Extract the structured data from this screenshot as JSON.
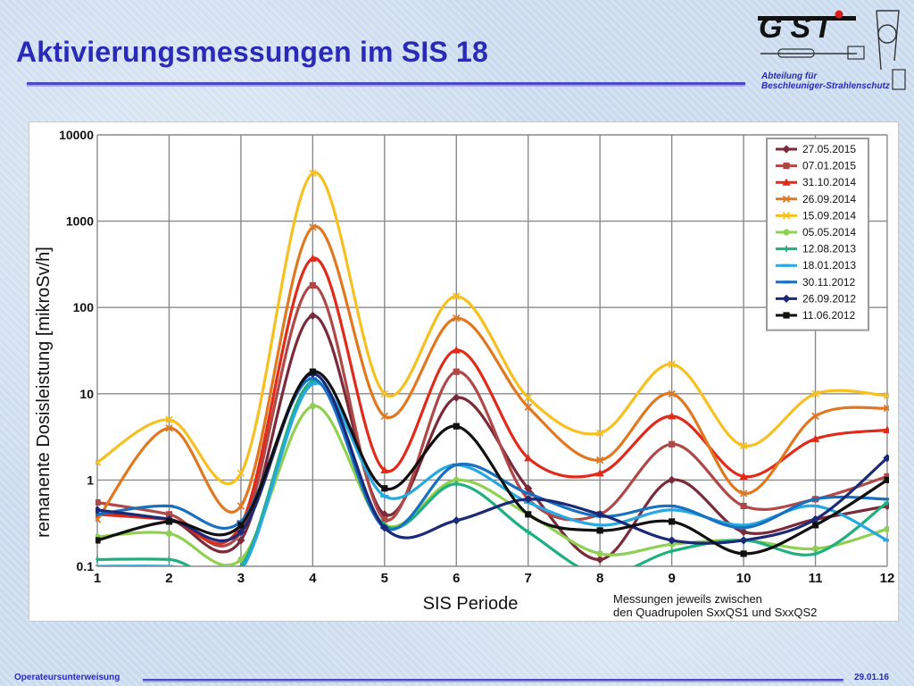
{
  "slide": {
    "title": "Aktivierungsmessungen im SIS 18",
    "footer_left": "Operateursunterweisung",
    "footer_right": "29.01.16"
  },
  "logo": {
    "text": "GSI",
    "subtitle_line1": "Abteilung für",
    "subtitle_line2": "Beschleuniger-Strahlenschutz"
  },
  "chart_data": {
    "type": "line",
    "ylabel": "remanente Dosisleistung [mikroSv/h]",
    "xlabel": "SIS Periode",
    "note_line1": "Messungen jeweils zwischen",
    "note_line2": "den Quadrupolen SxxQS1 und SxxQS2",
    "y_scale": "log",
    "ylim": [
      0.1,
      10000
    ],
    "xlim": [
      1,
      12
    ],
    "y_ticks": [
      0.1,
      1,
      10,
      100,
      1000,
      10000
    ],
    "y_tick_labels": [
      "0.1",
      "1",
      "10",
      "100",
      "1000",
      "10000"
    ],
    "x": [
      1,
      2,
      3,
      4,
      5,
      6,
      7,
      8,
      9,
      10,
      11,
      12
    ],
    "grid": true,
    "legend_position": "top-right",
    "series": [
      {
        "name": "27.05.2015",
        "color": "#7a2a3a",
        "marker": "diamond",
        "values": [
          0.4,
          0.35,
          0.2,
          80,
          0.4,
          9,
          0.8,
          0.12,
          1.0,
          0.25,
          0.35,
          0.5
        ]
      },
      {
        "name": "07.01.2015",
        "color": "#b04848",
        "marker": "square",
        "values": [
          0.55,
          0.4,
          0.25,
          180,
          0.35,
          18,
          0.6,
          0.4,
          2.6,
          0.5,
          0.6,
          1.1
        ]
      },
      {
        "name": "31.10.2014",
        "color": "#e02a1a",
        "marker": "triangle",
        "values": [
          0.4,
          0.35,
          0.3,
          370,
          1.3,
          32,
          1.8,
          1.2,
          5.5,
          1.1,
          3.0,
          3.8
        ]
      },
      {
        "name": "26.09.2014",
        "color": "#e07820",
        "marker": "x",
        "values": [
          0.35,
          4.0,
          0.5,
          850,
          5.5,
          75,
          7,
          1.7,
          10,
          0.7,
          5.5,
          6.8
        ]
      },
      {
        "name": "15.09.2014",
        "color": "#f5c020",
        "marker": "x",
        "values": [
          1.6,
          5.0,
          1.2,
          3600,
          10,
          135,
          9,
          3.5,
          22,
          2.5,
          10,
          9.5
        ]
      },
      {
        "name": "05.05.2014",
        "color": "#90d050",
        "marker": "circle",
        "values": [
          0.22,
          0.24,
          0.12,
          7.2,
          0.3,
          1.0,
          0.4,
          0.14,
          0.18,
          0.2,
          0.16,
          0.27
        ]
      },
      {
        "name": "12.08.2013",
        "color": "#20b080",
        "marker": "plus",
        "values": [
          0.12,
          0.12,
          0.1,
          14,
          0.3,
          0.9,
          0.25,
          0.08,
          0.15,
          0.2,
          0.14,
          0.55
        ]
      },
      {
        "name": "18.01.2013",
        "color": "#28a8e0",
        "marker": "dash",
        "values": [
          0.1,
          0.1,
          0.09,
          13,
          0.65,
          1.5,
          0.55,
          0.3,
          0.45,
          0.3,
          0.5,
          0.2
        ]
      },
      {
        "name": "30.11.2012",
        "color": "#1870c0",
        "marker": "dash",
        "values": [
          0.4,
          0.5,
          0.33,
          15,
          0.28,
          1.5,
          0.7,
          0.38,
          0.5,
          0.28,
          0.6,
          0.6
        ]
      },
      {
        "name": "26.09.2012",
        "color": "#1a2a78",
        "marker": "diamond",
        "values": [
          0.45,
          0.35,
          0.25,
          17,
          0.28,
          0.34,
          0.6,
          0.4,
          0.2,
          0.2,
          0.35,
          1.8
        ]
      },
      {
        "name": "11.06.2012",
        "color": "#101010",
        "marker": "square",
        "values": [
          0.2,
          0.33,
          0.3,
          18,
          0.8,
          4.2,
          0.4,
          0.26,
          0.33,
          0.14,
          0.3,
          1.0
        ]
      }
    ]
  }
}
